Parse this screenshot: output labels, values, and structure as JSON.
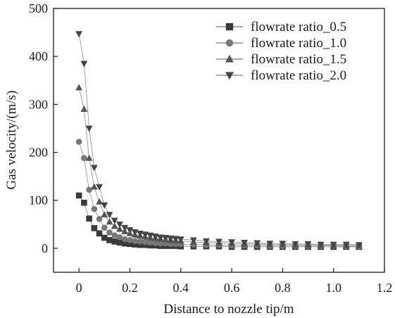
{
  "chart_data": {
    "type": "line",
    "xlabel": "Distance to nozzle tip/m",
    "ylabel": "Gas velocity/(m/s)",
    "xlim": [
      -0.1,
      1.2
    ],
    "ylim": [
      -50,
      500
    ],
    "xticks": [
      0,
      0.2,
      0.4,
      0.6,
      0.8,
      1.0,
      1.2
    ],
    "xtick_labels": [
      "0",
      "0.2",
      "0.4",
      "0.6",
      "0.8",
      "1.0",
      "1.2"
    ],
    "yticks": [
      0,
      100,
      200,
      300,
      400,
      500
    ],
    "ytick_labels": [
      "0",
      "100",
      "200",
      "300",
      "400",
      "500"
    ],
    "grid": false,
    "legend_position": "top-right",
    "x": [
      0.0,
      0.02,
      0.04,
      0.06,
      0.08,
      0.1,
      0.12,
      0.14,
      0.16,
      0.18,
      0.2,
      0.22,
      0.24,
      0.26,
      0.28,
      0.3,
      0.32,
      0.34,
      0.36,
      0.38,
      0.4,
      0.45,
      0.5,
      0.55,
      0.6,
      0.65,
      0.7,
      0.75,
      0.8,
      0.85,
      0.9,
      0.95,
      1.0,
      1.05,
      1.1
    ],
    "series": [
      {
        "name": "flowrate ratio_0.5",
        "marker": "square",
        "color": "#3a3a3a",
        "values": [
          110,
          95,
          62,
          42,
          31,
          22,
          17,
          14,
          12,
          10,
          9,
          8,
          7,
          7,
          6,
          6,
          5,
          5,
          5,
          5,
          4,
          4,
          4,
          4,
          3,
          3,
          3,
          3,
          3,
          3,
          3,
          3,
          3,
          3,
          3
        ]
      },
      {
        "name": "flowrate ratio_1.0",
        "marker": "circle",
        "color": "#777777",
        "values": [
          222,
          188,
          122,
          82,
          61,
          43,
          33,
          27,
          23,
          19,
          17,
          15,
          14,
          13,
          12,
          11,
          10,
          10,
          9,
          9,
          9,
          8,
          7,
          7,
          6,
          6,
          6,
          5,
          5,
          5,
          5,
          5,
          5,
          4,
          4
        ]
      },
      {
        "name": "flowrate ratio_1.5",
        "marker": "triangle-up",
        "color": "#555555",
        "values": [
          335,
          290,
          188,
          128,
          97,
          70,
          55,
          46,
          40,
          35,
          31,
          28,
          26,
          24,
          22,
          21,
          19,
          18,
          17,
          16,
          15,
          13,
          12,
          11,
          10,
          9,
          9,
          8,
          8,
          7,
          7,
          7,
          6,
          6,
          6
        ]
      },
      {
        "name": "flowrate ratio_2.0",
        "marker": "triangle-down",
        "color": "#444444",
        "values": [
          447,
          385,
          250,
          168,
          128,
          90,
          70,
          58,
          50,
          43,
          38,
          34,
          31,
          29,
          27,
          25,
          23,
          22,
          21,
          20,
          19,
          17,
          15,
          14,
          13,
          12,
          11,
          10,
          10,
          9,
          9,
          8,
          8,
          8,
          7
        ]
      }
    ]
  }
}
